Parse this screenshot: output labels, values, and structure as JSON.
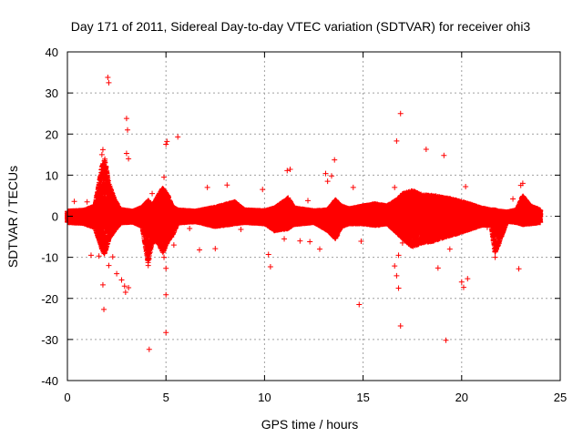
{
  "chart_data": {
    "type": "scatter",
    "title": "Day 171 of 2011, Sidereal Day-to-day VTEC variation (SDTVAR) for receiver ohi3",
    "xlabel": "GPS time / hours",
    "ylabel": "SDTVAR / TECUs",
    "xlim": [
      0,
      25
    ],
    "ylim": [
      -40,
      40
    ],
    "xticks": [
      0,
      5,
      10,
      15,
      20,
      25
    ],
    "yticks": [
      -40,
      -30,
      -20,
      -10,
      0,
      10,
      20,
      30,
      40
    ],
    "grid": true,
    "marker": "+",
    "color": "#ff0000",
    "series": [
      {
        "name": "ohi3",
        "outliers": [
          [
            2.05,
            33.8
          ],
          [
            2.1,
            32.5
          ],
          [
            3.0,
            23.8
          ],
          [
            3.05,
            21.0
          ],
          [
            3.0,
            15.3
          ],
          [
            3.1,
            14.0
          ],
          [
            1.8,
            16.2
          ],
          [
            1.75,
            15.0
          ],
          [
            5.05,
            18.2
          ],
          [
            5.0,
            17.5
          ],
          [
            5.6,
            19.3
          ],
          [
            4.9,
            9.5
          ],
          [
            11.3,
            11.4
          ],
          [
            11.15,
            11.1
          ],
          [
            13.1,
            10.4
          ],
          [
            13.4,
            9.8
          ],
          [
            13.55,
            13.7
          ],
          [
            16.9,
            25.0
          ],
          [
            16.7,
            18.3
          ],
          [
            18.2,
            16.3
          ],
          [
            19.1,
            14.8
          ],
          [
            20.2,
            7.2
          ],
          [
            23.1,
            8.0
          ],
          [
            23.0,
            7.5
          ],
          [
            0.35,
            3.6
          ],
          [
            1.0,
            3.5
          ],
          [
            4.3,
            5.5
          ],
          [
            7.1,
            7.0
          ],
          [
            8.1,
            7.6
          ],
          [
            9.9,
            6.5
          ],
          [
            12.2,
            3.8
          ],
          [
            13.2,
            8.5
          ],
          [
            14.5,
            7.0
          ],
          [
            16.6,
            7.0
          ],
          [
            22.6,
            4.2
          ],
          [
            1.85,
            -22.7
          ],
          [
            1.8,
            -16.7
          ],
          [
            1.6,
            -9.7
          ],
          [
            1.2,
            -9.5
          ],
          [
            2.3,
            -9.9
          ],
          [
            2.1,
            -12.0
          ],
          [
            2.5,
            -14.0
          ],
          [
            2.75,
            -15.5
          ],
          [
            2.9,
            -17.0
          ],
          [
            2.95,
            -18.5
          ],
          [
            3.1,
            -17.4
          ],
          [
            4.15,
            -32.4
          ],
          [
            4.1,
            -12.0
          ],
          [
            4.9,
            -10.0
          ],
          [
            5.0,
            -12.7
          ],
          [
            5.0,
            -19.1
          ],
          [
            5.0,
            -28.3
          ],
          [
            5.4,
            -7.0
          ],
          [
            6.7,
            -8.2
          ],
          [
            7.5,
            -7.9
          ],
          [
            10.2,
            -9.3
          ],
          [
            10.3,
            -12.3
          ],
          [
            11.0,
            -5.5
          ],
          [
            11.8,
            -6.0
          ],
          [
            12.3,
            -6.2
          ],
          [
            12.8,
            -8.0
          ],
          [
            14.8,
            -21.5
          ],
          [
            14.9,
            -6.1
          ],
          [
            16.6,
            -12.1
          ],
          [
            16.7,
            -14.5
          ],
          [
            16.8,
            -17.5
          ],
          [
            16.9,
            -26.7
          ],
          [
            16.8,
            -9.5
          ],
          [
            17.0,
            -6.5
          ],
          [
            18.8,
            -12.6
          ],
          [
            19.2,
            -30.2
          ],
          [
            19.4,
            -8.0
          ],
          [
            20.0,
            -16.0
          ],
          [
            20.1,
            -17.3
          ],
          [
            20.3,
            -15.2
          ],
          [
            21.7,
            -10.0
          ],
          [
            22.9,
            -12.8
          ],
          [
            0.6,
            -1.6
          ],
          [
            6.2,
            -3.0
          ],
          [
            8.8,
            -3.2
          ],
          [
            15.8,
            -2.2
          ],
          [
            21.3,
            -2.7
          ]
        ],
        "envelopes": [
          [
            0.0,
            1.2,
            -1.5
          ],
          [
            0.8,
            1.4,
            -1.7
          ],
          [
            1.4,
            2.5,
            -2.8
          ],
          [
            1.75,
            12.0,
            -8.0
          ],
          [
            1.9,
            14.0,
            -9.5
          ],
          [
            2.1,
            8.0,
            -5.5
          ],
          [
            2.4,
            4.0,
            -3.5
          ],
          [
            2.7,
            1.6,
            -1.6
          ],
          [
            3.3,
            1.2,
            -1.4
          ],
          [
            3.8,
            2.2,
            -2.5
          ],
          [
            4.1,
            4.0,
            -11.5
          ],
          [
            4.3,
            2.5,
            -6.0
          ],
          [
            4.6,
            5.0,
            -6.5
          ],
          [
            4.85,
            7.0,
            -9.0
          ],
          [
            5.1,
            5.0,
            -6.0
          ],
          [
            5.3,
            2.5,
            -5.0
          ],
          [
            5.6,
            1.5,
            -1.6
          ],
          [
            6.5,
            1.2,
            -1.3
          ],
          [
            7.5,
            2.2,
            -2.5
          ],
          [
            8.5,
            3.5,
            -1.8
          ],
          [
            9.0,
            1.5,
            -1.5
          ],
          [
            10.0,
            1.3,
            -1.8
          ],
          [
            10.5,
            2.0,
            -3.5
          ],
          [
            11.2,
            4.5,
            -3.0
          ],
          [
            11.5,
            2.0,
            -2.0
          ],
          [
            12.5,
            1.3,
            -1.5
          ],
          [
            13.2,
            1.5,
            -3.5
          ],
          [
            13.6,
            4.0,
            -5.5
          ],
          [
            13.9,
            2.5,
            -2.5
          ],
          [
            14.3,
            1.8,
            -1.8
          ],
          [
            15.0,
            2.5,
            -1.8
          ],
          [
            15.6,
            3.0,
            -2.2
          ],
          [
            16.2,
            2.5,
            -1.8
          ],
          [
            16.7,
            4.0,
            -4.0
          ],
          [
            17.0,
            5.5,
            -5.5
          ],
          [
            17.5,
            6.2,
            -7.5
          ],
          [
            18.0,
            5.2,
            -6.5
          ],
          [
            18.6,
            5.0,
            -6.0
          ],
          [
            19.2,
            4.5,
            -5.0
          ],
          [
            19.8,
            3.8,
            -4.2
          ],
          [
            20.4,
            3.0,
            -3.2
          ],
          [
            21.0,
            2.0,
            -2.2
          ],
          [
            21.5,
            1.5,
            -2.0
          ],
          [
            21.7,
            1.5,
            -9.0
          ],
          [
            21.9,
            1.2,
            -6.5
          ],
          [
            22.3,
            1.0,
            -1.2
          ],
          [
            22.8,
            1.5,
            -1.5
          ],
          [
            23.1,
            5.0,
            -2.0
          ],
          [
            23.5,
            2.5,
            -1.8
          ],
          [
            24.0,
            1.5,
            -1.5
          ]
        ]
      }
    ]
  }
}
